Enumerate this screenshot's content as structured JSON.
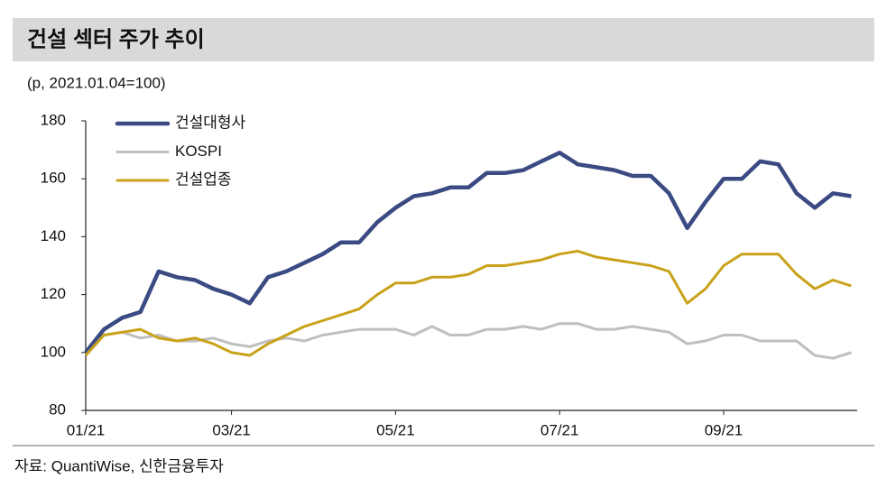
{
  "chart_data": {
    "type": "line",
    "title": "건설 섹터 주가 추이",
    "subtitle": "(p, 2021.01.04=100)",
    "source": "자료: QuantiWise, 신한금융투자",
    "categories": [
      "01/21",
      null,
      null,
      null,
      null,
      null,
      null,
      null,
      "03/21",
      null,
      null,
      null,
      null,
      null,
      null,
      null,
      null,
      "05/21",
      null,
      null,
      null,
      null,
      null,
      null,
      null,
      null,
      "07/21",
      null,
      null,
      null,
      null,
      null,
      null,
      null,
      null,
      "09/21",
      null,
      null,
      null,
      null,
      null,
      null,
      null
    ],
    "ylim": [
      80,
      180
    ],
    "yticks": [
      80,
      100,
      120,
      140,
      160,
      180
    ],
    "series": [
      {
        "name": "건설대형사",
        "color": "#3b4a82",
        "values": [
          100,
          108,
          112,
          114,
          128,
          126,
          125,
          122,
          120,
          117,
          126,
          128,
          131,
          134,
          138,
          138,
          145,
          150,
          154,
          155,
          157,
          157,
          162,
          162,
          163,
          166,
          169,
          165,
          164,
          163,
          161,
          161,
          155,
          143,
          152,
          160,
          160,
          166,
          165,
          155,
          150,
          155,
          154
        ]
      },
      {
        "name": "KOSPI",
        "color": "#bfbfbf",
        "values": [
          99,
          106,
          107,
          105,
          106,
          104,
          104,
          105,
          103,
          102,
          104,
          105,
          104,
          106,
          107,
          108,
          108,
          108,
          106,
          109,
          106,
          106,
          108,
          108,
          109,
          108,
          110,
          110,
          108,
          108,
          109,
          108,
          107,
          103,
          104,
          106,
          106,
          104,
          104,
          104,
          99,
          98,
          100
        ]
      },
      {
        "name": "건설업종",
        "color": "#c9a21a",
        "values": [
          99,
          106,
          107,
          108,
          105,
          104,
          105,
          103,
          100,
          99,
          103,
          106,
          109,
          111,
          113,
          115,
          120,
          124,
          124,
          126,
          126,
          127,
          130,
          130,
          131,
          132,
          134,
          135,
          133,
          132,
          131,
          130,
          128,
          117,
          122,
          130,
          134,
          134,
          134,
          127,
          122,
          125,
          123
        ]
      }
    ]
  }
}
